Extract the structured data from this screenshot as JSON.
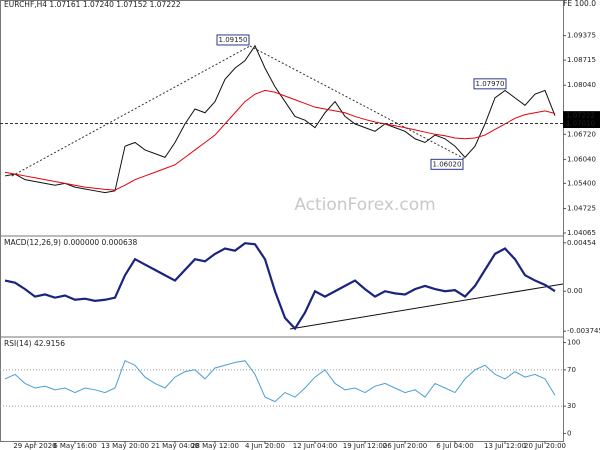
{
  "chart_data": [
    {
      "type": "line",
      "title": "EURCHF,H4  1.07161 1.07240 1.07152 1.07222",
      "corner_label": "FE 100.0",
      "watermark": "ActionForex.com",
      "categories": [
        null,
        null,
        null,
        "29 Apr 2020",
        null,
        null,
        null,
        "6 May 16:00",
        null,
        null,
        null,
        null,
        "13 May 20:00",
        null,
        null,
        null,
        null,
        "21 May 04:00",
        null,
        null,
        null,
        "28 May 12:00",
        null,
        null,
        null,
        null,
        "4 Jun 20:00",
        null,
        null,
        null,
        null,
        "12 Jun 04:00",
        null,
        null,
        null,
        null,
        "19 Jun 12:00",
        null,
        null,
        null,
        "26 Jun 20:00",
        null,
        null,
        null,
        null,
        "6 Jul 04:00",
        null,
        null,
        null,
        null,
        "13 Jul 12:00",
        null,
        null,
        null,
        "20 Jul 20:00",
        null
      ],
      "series": [
        {
          "color": "#111111",
          "values": [
            1.056,
            1.0565,
            1.055,
            1.0545,
            1.054,
            1.0535,
            1.054,
            1.053,
            1.0525,
            1.052,
            1.0515,
            1.052,
            1.064,
            1.065,
            1.063,
            1.062,
            1.061,
            1.065,
            1.07,
            1.074,
            1.073,
            1.076,
            1.082,
            1.085,
            1.087,
            1.091,
            1.085,
            1.08,
            1.076,
            1.072,
            1.071,
            1.069,
            1.073,
            1.076,
            1.072,
            1.07,
            1.069,
            1.068,
            1.07,
            1.069,
            1.068,
            1.066,
            1.065,
            1.067,
            1.066,
            1.064,
            1.061,
            1.064,
            1.07,
            1.077,
            1.079,
            1.077,
            1.075,
            1.078,
            1.079,
            1.0722
          ]
        },
        {
          "color": "#e8000b",
          "values": [
            1.057,
            1.0565,
            1.056,
            1.0555,
            1.055,
            1.0545,
            1.054,
            1.0535,
            1.053,
            1.0527,
            1.0524,
            1.0522,
            1.0535,
            1.055,
            1.056,
            1.057,
            1.058,
            1.059,
            1.061,
            1.063,
            1.065,
            1.067,
            1.07,
            1.073,
            1.076,
            1.078,
            1.079,
            1.0785,
            1.0775,
            1.0765,
            1.0755,
            1.0745,
            1.074,
            1.0735,
            1.073,
            1.072,
            1.0712,
            1.0705,
            1.07,
            1.0695,
            1.069,
            1.0684,
            1.0678,
            1.0672,
            1.0668,
            1.0662,
            1.066,
            1.0662,
            1.067,
            1.0685,
            1.07,
            1.0715,
            1.0725,
            1.073,
            1.0735,
            1.0728
          ]
        }
      ],
      "ylim": [
        1.04065,
        1.1001
      ],
      "yticks": [
        1.09375,
        1.08715,
        {
          "value": 1.0804,
          "label": "1.08040"
        },
        {
          "value": 1.0672,
          "label": "1.06720"
        },
        {
          "value": 1.0604,
          "label": "1.06040"
        },
        {
          "value": 1.054,
          "label": "1.05400"
        },
        1.04725,
        1.04065
      ],
      "last_price": 1.07222,
      "level": {
        "value": 1.0701,
        "label": "1.07010"
      },
      "annotations": [
        {
          "value": 1.0915,
          "label": "1.09150"
        },
        {
          "value": 1.0797,
          "label": "1.07970"
        },
        {
          "value": 1.0602,
          "label": "1.06020"
        }
      ]
    },
    {
      "type": "line",
      "title": "MACD(12,26,9) 0.000000 0.000638",
      "series": [
        {
          "color": "#1a237e",
          "values": [
            0.001,
            0.0008,
            0.0002,
            -0.0005,
            -0.0003,
            -0.0006,
            -0.0004,
            -0.0008,
            -0.0007,
            -0.0009,
            -0.0008,
            -0.0006,
            0.0015,
            0.003,
            0.0025,
            0.002,
            0.0015,
            0.001,
            0.002,
            0.003,
            0.0028,
            0.0035,
            0.004,
            0.0038,
            0.0045,
            0.0044,
            0.003,
            0.0,
            -0.0025,
            -0.0035,
            -0.002,
            0.0,
            -0.0005,
            0.0,
            0.0005,
            0.001,
            0.0002,
            -0.0005,
            0.0,
            -0.0002,
            -0.0003,
            0.0002,
            0.0005,
            0.0002,
            0.0,
            0.0001,
            -0.0005,
            0.0005,
            0.002,
            0.0035,
            0.004,
            0.003,
            0.0015,
            0.001,
            0.0006,
            0.0
          ]
        }
      ],
      "ylim": [
        -0.0041,
        0.0048
      ],
      "yticks": [
        0.00454,
        {
          "value": 0,
          "label": "0.00"
        },
        -0.003745
      ]
    },
    {
      "type": "line",
      "title": "RSI(14) 42.9156",
      "series": [
        {
          "color": "#4a9fd8",
          "values": [
            60,
            65,
            55,
            50,
            52,
            48,
            50,
            45,
            50,
            48,
            45,
            50,
            80,
            75,
            62,
            55,
            50,
            62,
            68,
            70,
            60,
            72,
            75,
            78,
            80,
            65,
            40,
            35,
            45,
            40,
            50,
            62,
            70,
            55,
            48,
            50,
            45,
            52,
            55,
            50,
            45,
            48,
            40,
            55,
            50,
            45,
            60,
            70,
            75,
            65,
            60,
            68,
            62,
            65,
            60,
            42
          ]
        }
      ],
      "ylim": [
        -5,
        105
      ],
      "yticks": [
        100,
        70,
        30,
        0
      ]
    }
  ]
}
